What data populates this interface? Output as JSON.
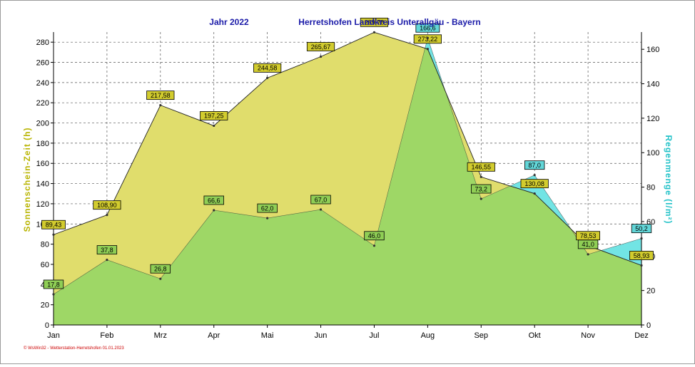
{
  "header": {
    "year": "Jahr  2022",
    "station": "Herretshofen Landkreis Unterallgäu - Bayern"
  },
  "credit": "© WsWin32 - Wetterstation-Herretshofen  01.01.2023",
  "colors": {
    "sun_fill": "#e0dd6c",
    "sun_line": "#222222",
    "sun_label": "#d2cc2e",
    "rain_fill": "#72e4e4",
    "rain_line": "#222222",
    "rain_label": "#62d6d8",
    "overlap_fill": "#9ed766",
    "overlap_label": "#8fce55",
    "left_axis_title": "#b8b400",
    "right_axis_title": "#22c2c8",
    "title": "#1a1aa8"
  },
  "chart_data": {
    "type": "area",
    "categories": [
      "Jan",
      "Feb",
      "Mrz",
      "Apr",
      "Mai",
      "Jun",
      "Jul",
      "Aug",
      "Sep",
      "Okt",
      "Nov",
      "Dez"
    ],
    "series": [
      {
        "name": "Sonnenschein-Zeit  (h)",
        "axis": "left",
        "values": [
          89.43,
          108.9,
          217.58,
          197.25,
          244.58,
          265.67,
          289.78,
          273.22,
          146.55,
          130.08,
          78.53,
          58.93
        ],
        "labels": [
          "89,43",
          "108,90",
          "217,58",
          "197,25",
          "244,58",
          "265,67",
          "289,78",
          "273,22",
          "146,55",
          "130,08",
          "78,53",
          "58,93"
        ]
      },
      {
        "name": "Regenmenge  (l/m²)",
        "axis": "right",
        "values": [
          17.8,
          37.8,
          26.8,
          66.6,
          62.0,
          67.0,
          46.0,
          166.6,
          73.2,
          87.0,
          41.0,
          50.2
        ],
        "labels": [
          "17,8",
          "37,8",
          "26,8",
          "66,6",
          "62,0",
          "67,0",
          "46,0",
          "166,6",
          "73,2",
          "87,0",
          "41,0",
          "50,2"
        ]
      }
    ],
    "y_left": {
      "title": "Sonnenschein-Zeit  (h)",
      "range": [
        0,
        290
      ],
      "ticks": [
        0,
        20,
        40,
        60,
        80,
        100,
        120,
        140,
        160,
        180,
        200,
        220,
        240,
        260,
        280
      ]
    },
    "y_right": {
      "title": "Regenmenge  (l/m²)",
      "range": [
        0,
        170
      ],
      "ticks": [
        0,
        20,
        40,
        60,
        80,
        100,
        120,
        140,
        160
      ]
    },
    "grid": true
  }
}
